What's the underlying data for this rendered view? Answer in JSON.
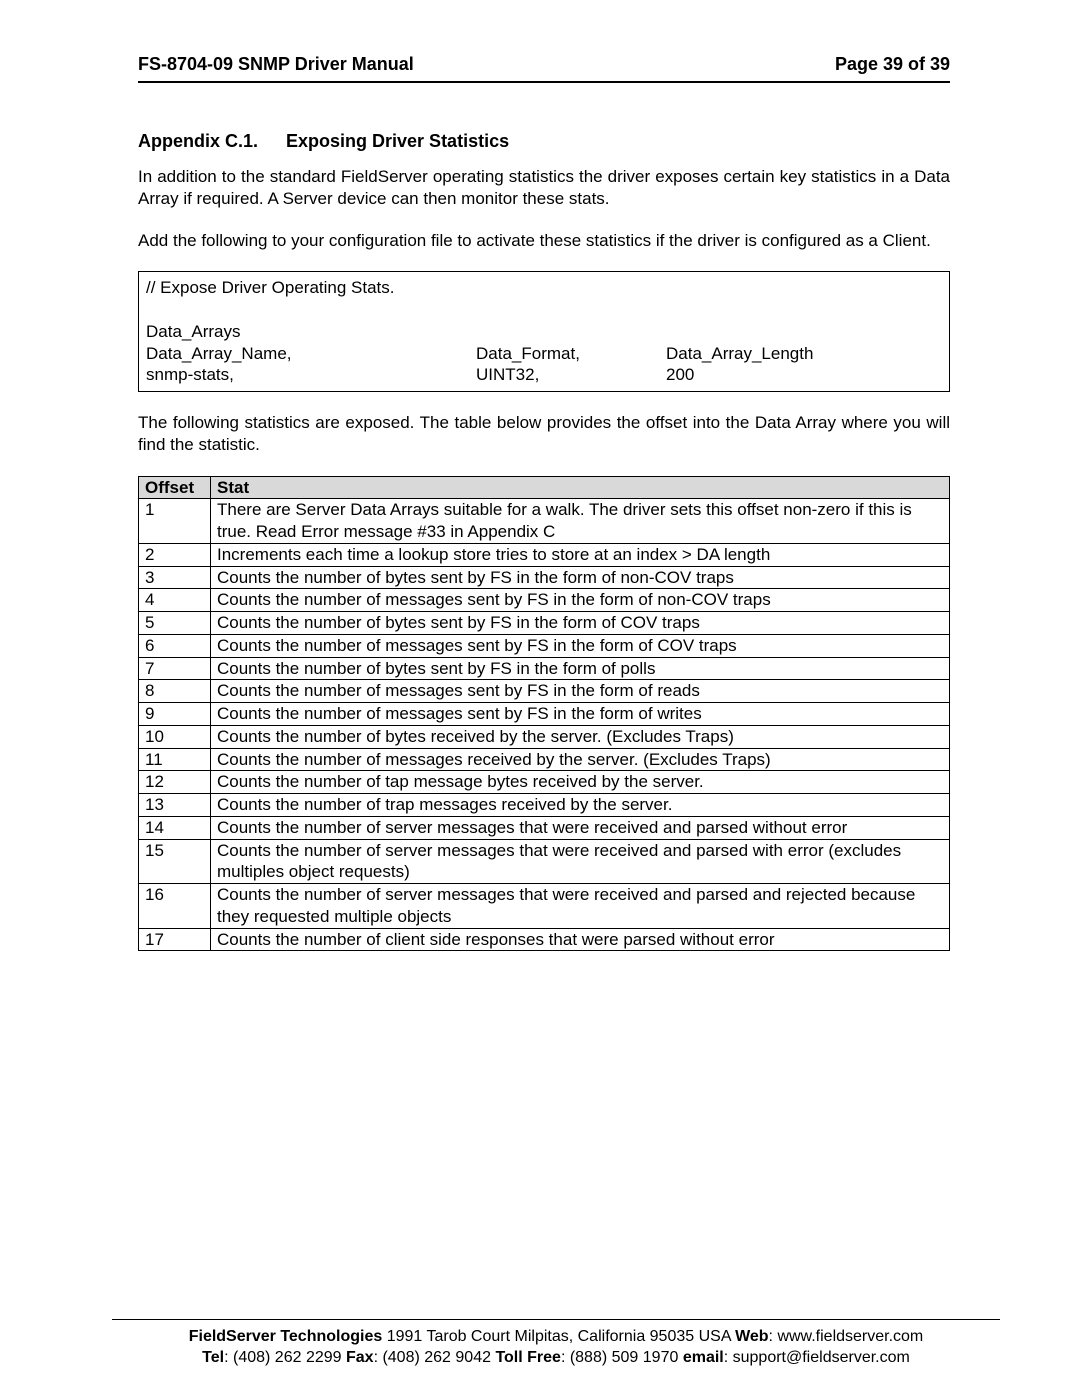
{
  "header": {
    "left": "FS-8704-09 SNMP Driver Manual",
    "right": "Page 39 of 39"
  },
  "section": {
    "number": "Appendix C.1.",
    "title": "Exposing Driver Statistics"
  },
  "paragraphs": {
    "intro": "In addition to the standard FieldServer operating statistics the driver exposes certain key statistics in a Data Array if required. A Server device can then monitor these stats.",
    "add": "Add the following to your configuration file to activate these statistics if the driver is configured as a Client.",
    "exposed": "The following statistics are exposed. The table below provides the offset into the Data Array where you will find the statistic."
  },
  "config": {
    "comment": "// Expose Driver Operating Stats.",
    "arrays_label": "Data_Arrays",
    "headers": {
      "name": "Data_Array_Name,",
      "format": "Data_Format,",
      "length": "Data_Array_Length"
    },
    "row": {
      "name": "snmp-stats,",
      "format": "UINT32,",
      "length": "200"
    }
  },
  "table": {
    "headers": {
      "offset": "Offset",
      "stat": "Stat"
    },
    "rows": [
      {
        "offset": "1",
        "stat": "There are Server Data Arrays suitable for a walk. The driver sets this offset non-zero if this is true. Read Error message #33 in Appendix C",
        "justify": true
      },
      {
        "offset": "2",
        "stat": "Increments each time a lookup store tries to store at an index > DA length"
      },
      {
        "offset": "3",
        "stat": "Counts the number of bytes sent by FS in the form of non-COV traps"
      },
      {
        "offset": "4",
        "stat": "Counts the number of messages sent by FS in the form of non-COV traps"
      },
      {
        "offset": "5",
        "stat": "Counts the number of bytes sent by FS in the form of COV traps"
      },
      {
        "offset": "6",
        "stat": "Counts the number of messages sent by FS in the form of COV traps"
      },
      {
        "offset": "7",
        "stat": "Counts the number of bytes sent by FS in the form of polls"
      },
      {
        "offset": "8",
        "stat": "Counts the number of messages sent by FS in the form of reads"
      },
      {
        "offset": "9",
        "stat": "Counts the number of messages sent by FS in the form of writes"
      },
      {
        "offset": "10",
        "stat": "Counts the number of bytes received by the server. (Excludes Traps)"
      },
      {
        "offset": "11",
        "stat": "Counts the number of messages received by the server. (Excludes Traps)"
      },
      {
        "offset": "12",
        "stat": "Counts the number of tap message bytes received by the server."
      },
      {
        "offset": "13",
        "stat": "Counts the number of trap messages received by the server."
      },
      {
        "offset": "14",
        "stat": "Counts the number of server messages that were received and parsed without error"
      },
      {
        "offset": "15",
        "stat": "Counts the number of server messages that were received and parsed with error (excludes multiples object requests)",
        "justify": true
      },
      {
        "offset": "16",
        "stat": "Counts the number of server messages that were received and parsed and rejected because they requested multiple objects",
        "justify": true
      },
      {
        "offset": "17",
        "stat": "Counts the number of client side responses that were parsed without error"
      }
    ]
  },
  "footer": {
    "company": "FieldServer Technologies",
    "address": " 1991 Tarob Court Milpitas, California 95035 USA   ",
    "web_label": "Web",
    "web": ": www.fieldserver.com",
    "tel_label": "Tel",
    "tel": ": (408) 262 2299   ",
    "fax_label": "Fax",
    "fax": ": (408) 262 9042   ",
    "tollfree_label": "Toll Free",
    "tollfree": ": (888) 509 1970   ",
    "email_label": "email",
    "email": ": support@fieldserver.com"
  }
}
